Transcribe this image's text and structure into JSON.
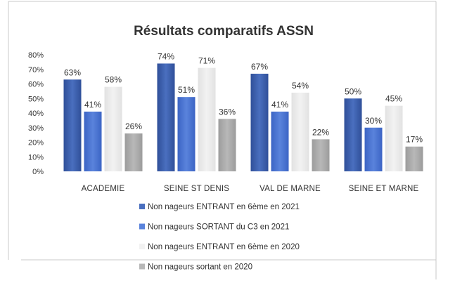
{
  "chart_data": {
    "type": "bar",
    "title": "Résultats comparatifs ASSN",
    "categories": [
      "ACADEMIE",
      "SEINE ST DENIS",
      "VAL DE MARNE",
      "SEINE ET MARNE"
    ],
    "series": [
      {
        "name": "Non nageurs ENTRANT en 6ème en 2021",
        "values": [
          63,
          74,
          67,
          50
        ],
        "labels": [
          "63%",
          "74%",
          "67%",
          "50%"
        ],
        "color": "#2F4F99",
        "color_light": "#4A6FBF"
      },
      {
        "name": "Non nageurs SORTANT du C3  en 2021",
        "values": [
          41,
          51,
          41,
          30
        ],
        "labels": [
          "41%",
          "51%",
          "41%",
          "30%"
        ],
        "color": "#3B64C4",
        "color_light": "#5A83DC"
      },
      {
        "name": "Non nageurs ENTRANT en 6ème en 2020",
        "values": [
          58,
          71,
          54,
          45
        ],
        "labels": [
          "58%",
          "71%",
          "54%",
          "45%"
        ],
        "color": "#E2E2E2",
        "color_light": "#F2F2F2"
      },
      {
        "name": "Non nageurs sortant en 2020",
        "values": [
          26,
          36,
          22,
          17
        ],
        "labels": [
          "26%",
          "36%",
          "22%",
          "17%"
        ],
        "color": "#9C9C9C",
        "color_light": "#B8B8B8"
      }
    ],
    "ylim": [
      0,
      80
    ],
    "yticks": [
      0,
      10,
      20,
      30,
      40,
      50,
      60,
      70,
      80
    ],
    "ytick_labels": [
      "0%",
      "10%",
      "20%",
      "30%",
      "40%",
      "50%",
      "60%",
      "70%",
      "80%"
    ],
    "xlabel": "",
    "ylabel": "",
    "grid": false,
    "legend_position": "bottom"
  }
}
